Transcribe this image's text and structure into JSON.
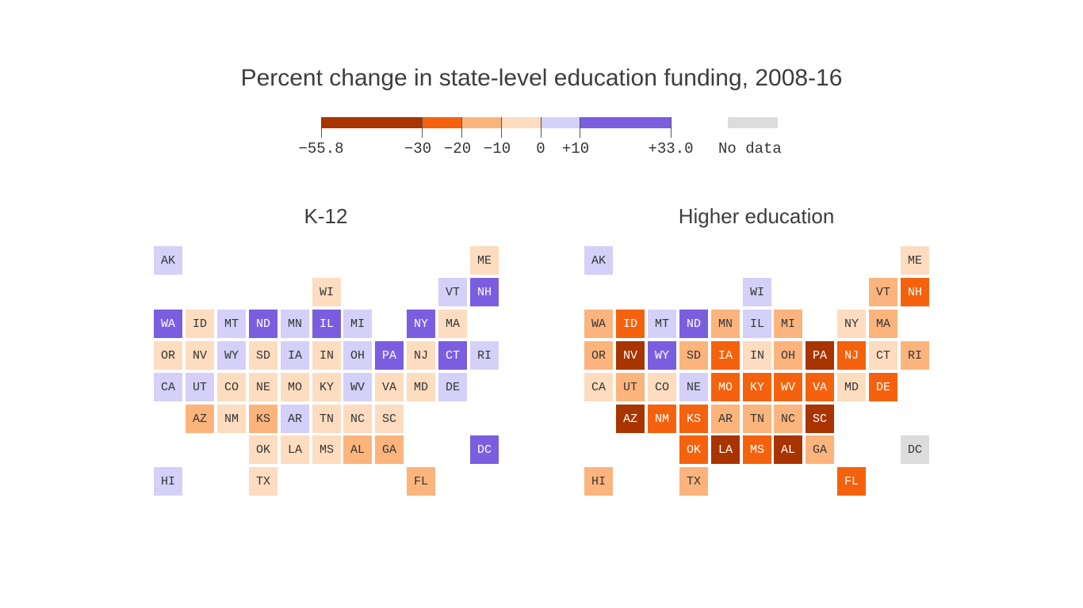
{
  "title": "Percent change in state-level education funding, 2008-16",
  "legend": {
    "colors": {
      "lt_neg30": "#a83400",
      "neg30_neg20": "#f5620e",
      "neg20_neg10": "#fcb47d",
      "neg10_0": "#fddcc0",
      "pos0_10": "#d4d0f8",
      "pos10_plus": "#7b5ee0",
      "no_data": "#dcdcdc"
    },
    "labels": [
      "−55.8",
      "−30",
      "−20",
      "−10",
      "0",
      "+10",
      "+33.0"
    ],
    "no_data_label": "No data"
  },
  "chart_data": {
    "type": "tile-grid-map",
    "bins": [
      "lt_neg30",
      "neg30_neg20",
      "neg20_neg10",
      "neg10_0",
      "pos0_10",
      "pos10_plus",
      "no_data"
    ],
    "bin_edges": [
      -55.8,
      -30,
      -20,
      -10,
      0,
      10,
      33.0
    ],
    "maps": [
      {
        "name": "K-12",
        "states": [
          {
            "abbr": "AK",
            "col": 0,
            "row": 0,
            "bin": "pos0_10"
          },
          {
            "abbr": "ME",
            "col": 10,
            "row": 0,
            "bin": "neg10_0"
          },
          {
            "abbr": "WI",
            "col": 5,
            "row": 1,
            "bin": "neg10_0"
          },
          {
            "abbr": "VT",
            "col": 9,
            "row": 1,
            "bin": "pos0_10"
          },
          {
            "abbr": "NH",
            "col": 10,
            "row": 1,
            "bin": "pos10_plus"
          },
          {
            "abbr": "WA",
            "col": 0,
            "row": 2,
            "bin": "pos10_plus"
          },
          {
            "abbr": "ID",
            "col": 1,
            "row": 2,
            "bin": "neg10_0"
          },
          {
            "abbr": "MT",
            "col": 2,
            "row": 2,
            "bin": "pos0_10"
          },
          {
            "abbr": "ND",
            "col": 3,
            "row": 2,
            "bin": "pos10_plus"
          },
          {
            "abbr": "MN",
            "col": 4,
            "row": 2,
            "bin": "pos0_10"
          },
          {
            "abbr": "IL",
            "col": 5,
            "row": 2,
            "bin": "pos10_plus"
          },
          {
            "abbr": "MI",
            "col": 6,
            "row": 2,
            "bin": "pos0_10"
          },
          {
            "abbr": "NY",
            "col": 8,
            "row": 2,
            "bin": "pos10_plus"
          },
          {
            "abbr": "MA",
            "col": 9,
            "row": 2,
            "bin": "neg10_0"
          },
          {
            "abbr": "OR",
            "col": 0,
            "row": 3,
            "bin": "neg10_0"
          },
          {
            "abbr": "NV",
            "col": 1,
            "row": 3,
            "bin": "neg10_0"
          },
          {
            "abbr": "WY",
            "col": 2,
            "row": 3,
            "bin": "pos0_10"
          },
          {
            "abbr": "SD",
            "col": 3,
            "row": 3,
            "bin": "neg10_0"
          },
          {
            "abbr": "IA",
            "col": 4,
            "row": 3,
            "bin": "pos0_10"
          },
          {
            "abbr": "IN",
            "col": 5,
            "row": 3,
            "bin": "neg10_0"
          },
          {
            "abbr": "OH",
            "col": 6,
            "row": 3,
            "bin": "pos0_10"
          },
          {
            "abbr": "PA",
            "col": 7,
            "row": 3,
            "bin": "pos10_plus"
          },
          {
            "abbr": "NJ",
            "col": 8,
            "row": 3,
            "bin": "neg10_0"
          },
          {
            "abbr": "CT",
            "col": 9,
            "row": 3,
            "bin": "pos10_plus"
          },
          {
            "abbr": "RI",
            "col": 10,
            "row": 3,
            "bin": "pos0_10"
          },
          {
            "abbr": "CA",
            "col": 0,
            "row": 4,
            "bin": "pos0_10"
          },
          {
            "abbr": "UT",
            "col": 1,
            "row": 4,
            "bin": "pos0_10"
          },
          {
            "abbr": "CO",
            "col": 2,
            "row": 4,
            "bin": "neg10_0"
          },
          {
            "abbr": "NE",
            "col": 3,
            "row": 4,
            "bin": "neg10_0"
          },
          {
            "abbr": "MO",
            "col": 4,
            "row": 4,
            "bin": "neg10_0"
          },
          {
            "abbr": "KY",
            "col": 5,
            "row": 4,
            "bin": "neg10_0"
          },
          {
            "abbr": "WV",
            "col": 6,
            "row": 4,
            "bin": "pos0_10"
          },
          {
            "abbr": "VA",
            "col": 7,
            "row": 4,
            "bin": "neg10_0"
          },
          {
            "abbr": "MD",
            "col": 8,
            "row": 4,
            "bin": "neg10_0"
          },
          {
            "abbr": "DE",
            "col": 9,
            "row": 4,
            "bin": "pos0_10"
          },
          {
            "abbr": "AZ",
            "col": 1,
            "row": 5,
            "bin": "neg20_neg10"
          },
          {
            "abbr": "NM",
            "col": 2,
            "row": 5,
            "bin": "neg10_0"
          },
          {
            "abbr": "KS",
            "col": 3,
            "row": 5,
            "bin": "neg20_neg10"
          },
          {
            "abbr": "AR",
            "col": 4,
            "row": 5,
            "bin": "pos0_10"
          },
          {
            "abbr": "TN",
            "col": 5,
            "row": 5,
            "bin": "neg10_0"
          },
          {
            "abbr": "NC",
            "col": 6,
            "row": 5,
            "bin": "neg10_0"
          },
          {
            "abbr": "SC",
            "col": 7,
            "row": 5,
            "bin": "neg10_0"
          },
          {
            "abbr": "OK",
            "col": 3,
            "row": 6,
            "bin": "neg10_0"
          },
          {
            "abbr": "LA",
            "col": 4,
            "row": 6,
            "bin": "neg10_0"
          },
          {
            "abbr": "MS",
            "col": 5,
            "row": 6,
            "bin": "neg10_0"
          },
          {
            "abbr": "AL",
            "col": 6,
            "row": 6,
            "bin": "neg20_neg10"
          },
          {
            "abbr": "GA",
            "col": 7,
            "row": 6,
            "bin": "neg20_neg10"
          },
          {
            "abbr": "DC",
            "col": 10,
            "row": 6,
            "bin": "pos10_plus"
          },
          {
            "abbr": "HI",
            "col": 0,
            "row": 7,
            "bin": "pos0_10"
          },
          {
            "abbr": "TX",
            "col": 3,
            "row": 7,
            "bin": "neg10_0"
          },
          {
            "abbr": "FL",
            "col": 8,
            "row": 7,
            "bin": "neg20_neg10"
          }
        ]
      },
      {
        "name": "Higher education",
        "states": [
          {
            "abbr": "AK",
            "col": 0,
            "row": 0,
            "bin": "pos0_10"
          },
          {
            "abbr": "ME",
            "col": 10,
            "row": 0,
            "bin": "neg10_0"
          },
          {
            "abbr": "WI",
            "col": 5,
            "row": 1,
            "bin": "pos0_10"
          },
          {
            "abbr": "VT",
            "col": 9,
            "row": 1,
            "bin": "neg20_neg10"
          },
          {
            "abbr": "NH",
            "col": 10,
            "row": 1,
            "bin": "neg30_neg20"
          },
          {
            "abbr": "WA",
            "col": 0,
            "row": 2,
            "bin": "neg20_neg10"
          },
          {
            "abbr": "ID",
            "col": 1,
            "row": 2,
            "bin": "neg30_neg20"
          },
          {
            "abbr": "MT",
            "col": 2,
            "row": 2,
            "bin": "pos0_10"
          },
          {
            "abbr": "ND",
            "col": 3,
            "row": 2,
            "bin": "pos10_plus"
          },
          {
            "abbr": "MN",
            "col": 4,
            "row": 2,
            "bin": "neg20_neg10"
          },
          {
            "abbr": "IL",
            "col": 5,
            "row": 2,
            "bin": "pos0_10"
          },
          {
            "abbr": "MI",
            "col": 6,
            "row": 2,
            "bin": "neg20_neg10"
          },
          {
            "abbr": "NY",
            "col": 8,
            "row": 2,
            "bin": "neg10_0"
          },
          {
            "abbr": "MA",
            "col": 9,
            "row": 2,
            "bin": "neg20_neg10"
          },
          {
            "abbr": "OR",
            "col": 0,
            "row": 3,
            "bin": "neg20_neg10"
          },
          {
            "abbr": "NV",
            "col": 1,
            "row": 3,
            "bin": "lt_neg30"
          },
          {
            "abbr": "WY",
            "col": 2,
            "row": 3,
            "bin": "pos10_plus"
          },
          {
            "abbr": "SD",
            "col": 3,
            "row": 3,
            "bin": "neg20_neg10"
          },
          {
            "abbr": "IA",
            "col": 4,
            "row": 3,
            "bin": "neg30_neg20"
          },
          {
            "abbr": "IN",
            "col": 5,
            "row": 3,
            "bin": "neg10_0"
          },
          {
            "abbr": "OH",
            "col": 6,
            "row": 3,
            "bin": "neg20_neg10"
          },
          {
            "abbr": "PA",
            "col": 7,
            "row": 3,
            "bin": "lt_neg30"
          },
          {
            "abbr": "NJ",
            "col": 8,
            "row": 3,
            "bin": "neg30_neg20"
          },
          {
            "abbr": "CT",
            "col": 9,
            "row": 3,
            "bin": "neg10_0"
          },
          {
            "abbr": "RI",
            "col": 10,
            "row": 3,
            "bin": "neg20_neg10"
          },
          {
            "abbr": "CA",
            "col": 0,
            "row": 4,
            "bin": "neg10_0"
          },
          {
            "abbr": "UT",
            "col": 1,
            "row": 4,
            "bin": "neg20_neg10"
          },
          {
            "abbr": "CO",
            "col": 2,
            "row": 4,
            "bin": "neg10_0"
          },
          {
            "abbr": "NE",
            "col": 3,
            "row": 4,
            "bin": "pos0_10"
          },
          {
            "abbr": "MO",
            "col": 4,
            "row": 4,
            "bin": "neg30_neg20"
          },
          {
            "abbr": "KY",
            "col": 5,
            "row": 4,
            "bin": "neg30_neg20"
          },
          {
            "abbr": "WV",
            "col": 6,
            "row": 4,
            "bin": "neg30_neg20"
          },
          {
            "abbr": "VA",
            "col": 7,
            "row": 4,
            "bin": "neg30_neg20"
          },
          {
            "abbr": "MD",
            "col": 8,
            "row": 4,
            "bin": "neg10_0"
          },
          {
            "abbr": "DE",
            "col": 9,
            "row": 4,
            "bin": "neg30_neg20"
          },
          {
            "abbr": "AZ",
            "col": 1,
            "row": 5,
            "bin": "lt_neg30"
          },
          {
            "abbr": "NM",
            "col": 2,
            "row": 5,
            "bin": "neg30_neg20"
          },
          {
            "abbr": "KS",
            "col": 3,
            "row": 5,
            "bin": "neg30_neg20"
          },
          {
            "abbr": "AR",
            "col": 4,
            "row": 5,
            "bin": "neg20_neg10"
          },
          {
            "abbr": "TN",
            "col": 5,
            "row": 5,
            "bin": "neg20_neg10"
          },
          {
            "abbr": "NC",
            "col": 6,
            "row": 5,
            "bin": "neg20_neg10"
          },
          {
            "abbr": "SC",
            "col": 7,
            "row": 5,
            "bin": "lt_neg30"
          },
          {
            "abbr": "OK",
            "col": 3,
            "row": 6,
            "bin": "neg30_neg20"
          },
          {
            "abbr": "LA",
            "col": 4,
            "row": 6,
            "bin": "lt_neg30"
          },
          {
            "abbr": "MS",
            "col": 5,
            "row": 6,
            "bin": "neg30_neg20"
          },
          {
            "abbr": "AL",
            "col": 6,
            "row": 6,
            "bin": "lt_neg30"
          },
          {
            "abbr": "GA",
            "col": 7,
            "row": 6,
            "bin": "neg20_neg10"
          },
          {
            "abbr": "DC",
            "col": 10,
            "row": 6,
            "bin": "no_data"
          },
          {
            "abbr": "HI",
            "col": 0,
            "row": 7,
            "bin": "neg20_neg10"
          },
          {
            "abbr": "TX",
            "col": 3,
            "row": 7,
            "bin": "neg20_neg10"
          },
          {
            "abbr": "FL",
            "col": 8,
            "row": 7,
            "bin": "neg30_neg20"
          }
        ]
      }
    ]
  }
}
